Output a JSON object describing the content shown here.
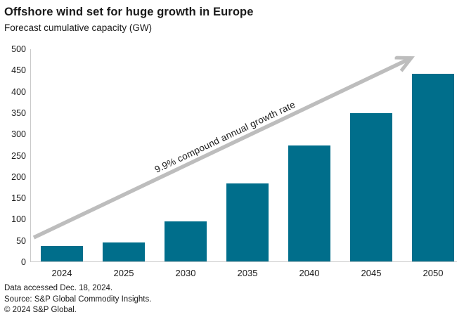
{
  "header": {
    "title": "Offshore wind set for huge growth in Europe",
    "subtitle": "Forecast cumulative capacity (GW)"
  },
  "chart_data": {
    "type": "bar",
    "title": "Offshore wind set for huge growth in Europe",
    "subtitle": "Forecast cumulative capacity (GW)",
    "categories": [
      "2024",
      "2025",
      "2030",
      "2035",
      "2040",
      "2045",
      "2050"
    ],
    "values": [
      37,
      44,
      94,
      184,
      272,
      349,
      440
    ],
    "xlabel": "",
    "ylabel": "",
    "ylim": [
      0,
      500
    ],
    "yticks": [
      0,
      50,
      100,
      150,
      200,
      250,
      300,
      350,
      400,
      450,
      500
    ],
    "grid": false,
    "legend": null,
    "bar_color": "#006e8b",
    "axis_color": "#c9c9c9",
    "annotation": {
      "text": "9.9% compound annual growth rate",
      "arrow_color": "#bdbdbd"
    }
  },
  "footer": {
    "lines": [
      "Data accessed Dec. 18, 2024.",
      "Source: S&P Global Commodity Insights.",
      "© 2024 S&P Global."
    ]
  }
}
